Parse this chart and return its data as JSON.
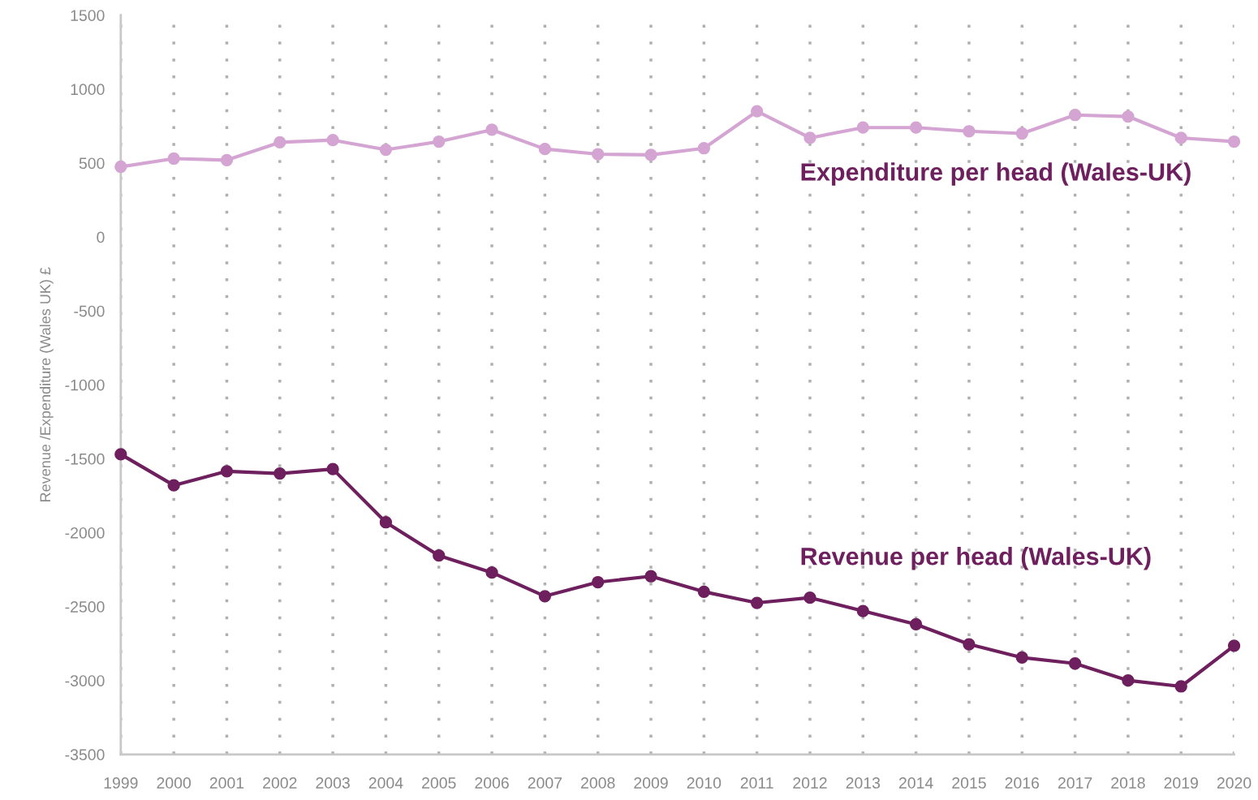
{
  "chart_data": {
    "type": "line",
    "ylabel": "Revenue /Expenditure (Wales UK) £",
    "categories": [
      "1999",
      "2000",
      "2001",
      "2002",
      "2003",
      "2004",
      "2005",
      "2006",
      "2007",
      "2008",
      "2009",
      "2010",
      "2011",
      "2012",
      "2013",
      "2014",
      "2015",
      "2016",
      "2017",
      "2018",
      "2019",
      "2020"
    ],
    "series": [
      {
        "name": "Expenditure per head (Wales-UK)",
        "color": "#d4a5d2",
        "values": [
          475,
          530,
          520,
          640,
          655,
          590,
          645,
          725,
          595,
          560,
          555,
          600,
          850,
          670,
          740,
          740,
          715,
          700,
          825,
          815,
          670,
          645
        ]
      },
      {
        "name": "Revenue per head (Wales-UK)",
        "color": "#6e1f5e",
        "values": [
          -1470,
          -1680,
          -1585,
          -1600,
          -1570,
          -1930,
          -2155,
          -2270,
          -2430,
          -2335,
          -2295,
          -2400,
          -2475,
          -2440,
          -2530,
          -2620,
          -2755,
          -2845,
          -2885,
          -3000,
          -3040,
          -2765
        ]
      }
    ],
    "ylim": [
      -3500,
      1500
    ],
    "yticks": [
      -3500,
      -3000,
      -2500,
      -2000,
      -1500,
      -1000,
      -500,
      0,
      500,
      1000,
      1500
    ],
    "grid": "x",
    "marker": "circle",
    "line_style": "solid",
    "legend": false
  }
}
